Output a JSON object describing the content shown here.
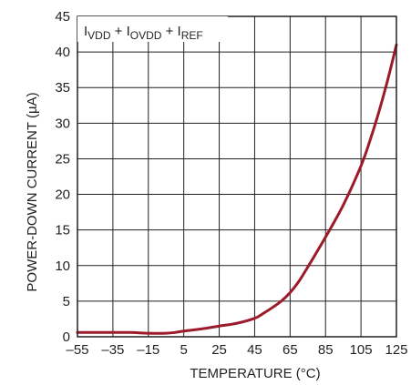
{
  "chart_data": {
    "type": "line",
    "title": "",
    "xlabel": "TEMPERATURE (°C)",
    "ylabel": "POWER-DOWN CURRENT (µA)",
    "xlim": [
      -55,
      125
    ],
    "ylim": [
      0,
      45
    ],
    "x_ticks": [
      -55,
      -35,
      -15,
      5,
      25,
      45,
      65,
      85,
      105,
      125
    ],
    "x_tick_labels": [
      "–55",
      "–35",
      "–15",
      "5",
      "25",
      "45",
      "65",
      "85",
      "105",
      "125"
    ],
    "y_ticks": [
      0,
      5,
      10,
      15,
      20,
      25,
      30,
      35,
      40,
      45
    ],
    "y_tick_labels": [
      "0",
      "5",
      "10",
      "15",
      "20",
      "25",
      "30",
      "35",
      "40",
      "45"
    ],
    "grid": true,
    "legend_position": "top-left",
    "annotation": {
      "parts": [
        {
          "text": "I",
          "sub": "VDD"
        },
        {
          "text": " + I",
          "sub": "OVDD"
        },
        {
          "text": " + I",
          "sub": "REF"
        }
      ]
    },
    "line_color": "#9b1b2a",
    "series": [
      {
        "x": [
          -55,
          -45,
          -35,
          -25,
          -15,
          -5,
          0,
          5,
          15,
          25,
          35,
          45,
          50,
          55,
          60,
          65,
          70,
          75,
          85,
          95,
          105,
          110,
          115,
          120,
          125
        ],
        "y": [
          0.6,
          0.6,
          0.6,
          0.6,
          0.5,
          0.5,
          0.6,
          0.8,
          1.1,
          1.5,
          1.9,
          2.6,
          3.3,
          4.1,
          5.0,
          6.2,
          7.8,
          9.8,
          14.0,
          18.5,
          24.0,
          27.5,
          31.5,
          36.0,
          41.0
        ]
      }
    ]
  }
}
